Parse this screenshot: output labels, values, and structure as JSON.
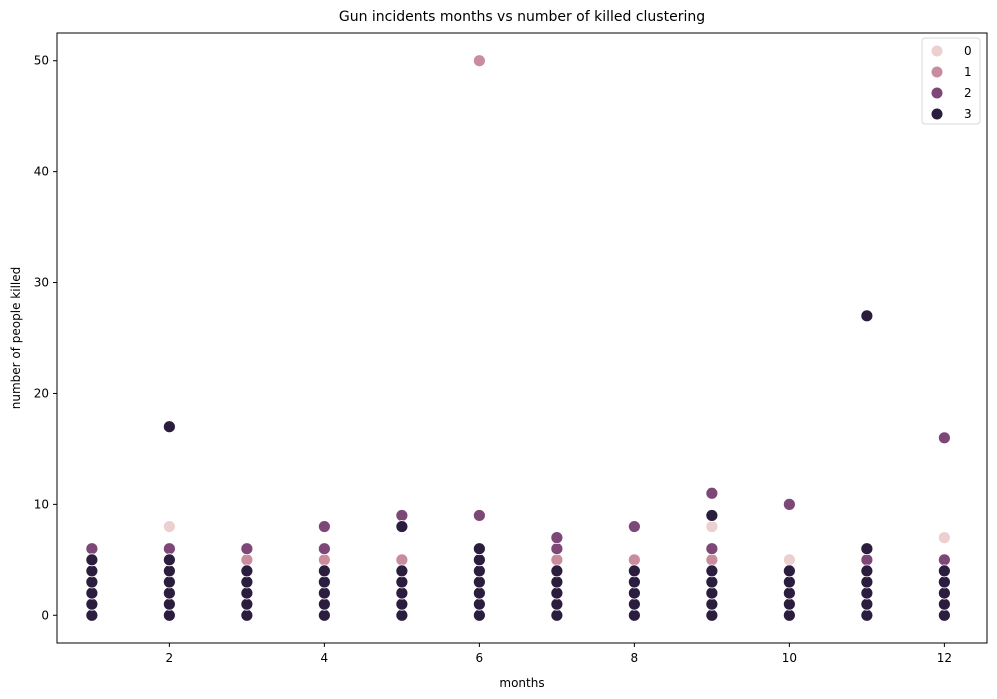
{
  "chart_data": {
    "type": "scatter",
    "title": "Gun incidents months vs number of killed clustering",
    "xlabel": "months",
    "ylabel": "number of people killed",
    "xlim": [
      0.55,
      12.55
    ],
    "ylim": [
      -2.5,
      52.5
    ],
    "x_ticks": [
      2,
      4,
      6,
      8,
      10,
      12
    ],
    "y_ticks": [
      0,
      10,
      20,
      30,
      40,
      50
    ],
    "grid": false,
    "legend_position": "top-right",
    "series": [
      {
        "name": "0",
        "color": "#ebd0cf",
        "points": [
          [
            2,
            8
          ],
          [
            9,
            8
          ],
          [
            10,
            5
          ],
          [
            12,
            7
          ]
        ]
      },
      {
        "name": "1",
        "color": "#c98c9e",
        "points": [
          [
            3,
            5
          ],
          [
            4,
            5
          ],
          [
            5,
            5
          ],
          [
            6,
            50
          ],
          [
            7,
            5
          ],
          [
            8,
            5
          ],
          [
            9,
            5
          ],
          [
            11,
            5
          ],
          [
            12,
            5
          ]
        ]
      },
      {
        "name": "2",
        "color": "#7d4778",
        "points": [
          [
            1,
            6
          ],
          [
            2,
            6
          ],
          [
            3,
            6
          ],
          [
            4,
            6
          ],
          [
            4,
            8
          ],
          [
            5,
            9
          ],
          [
            6,
            9
          ],
          [
            7,
            6
          ],
          [
            7,
            7
          ],
          [
            8,
            8
          ],
          [
            9,
            6
          ],
          [
            9,
            11
          ],
          [
            10,
            10
          ],
          [
            11,
            5
          ],
          [
            12,
            16
          ],
          [
            12,
            5
          ]
        ]
      },
      {
        "name": "3",
        "color": "#2b1d3d",
        "points": [
          [
            1,
            0
          ],
          [
            1,
            1
          ],
          [
            1,
            2
          ],
          [
            1,
            3
          ],
          [
            1,
            4
          ],
          [
            1,
            5
          ],
          [
            2,
            0
          ],
          [
            2,
            1
          ],
          [
            2,
            2
          ],
          [
            2,
            3
          ],
          [
            2,
            4
          ],
          [
            2,
            5
          ],
          [
            2,
            17
          ],
          [
            3,
            0
          ],
          [
            3,
            1
          ],
          [
            3,
            2
          ],
          [
            3,
            3
          ],
          [
            3,
            4
          ],
          [
            4,
            0
          ],
          [
            4,
            1
          ],
          [
            4,
            2
          ],
          [
            4,
            3
          ],
          [
            4,
            4
          ],
          [
            5,
            0
          ],
          [
            5,
            1
          ],
          [
            5,
            2
          ],
          [
            5,
            3
          ],
          [
            5,
            4
          ],
          [
            5,
            8
          ],
          [
            6,
            0
          ],
          [
            6,
            1
          ],
          [
            6,
            2
          ],
          [
            6,
            3
          ],
          [
            6,
            4
          ],
          [
            6,
            5
          ],
          [
            6,
            6
          ],
          [
            7,
            0
          ],
          [
            7,
            1
          ],
          [
            7,
            2
          ],
          [
            7,
            3
          ],
          [
            7,
            4
          ],
          [
            8,
            0
          ],
          [
            8,
            1
          ],
          [
            8,
            2
          ],
          [
            8,
            3
          ],
          [
            8,
            4
          ],
          [
            9,
            0
          ],
          [
            9,
            1
          ],
          [
            9,
            2
          ],
          [
            9,
            3
          ],
          [
            9,
            4
          ],
          [
            9,
            9
          ],
          [
            10,
            0
          ],
          [
            10,
            1
          ],
          [
            10,
            2
          ],
          [
            10,
            3
          ],
          [
            10,
            4
          ],
          [
            11,
            0
          ],
          [
            11,
            1
          ],
          [
            11,
            2
          ],
          [
            11,
            3
          ],
          [
            11,
            4
          ],
          [
            11,
            6
          ],
          [
            11,
            27
          ],
          [
            12,
            0
          ],
          [
            12,
            1
          ],
          [
            12,
            2
          ],
          [
            12,
            3
          ],
          [
            12,
            4
          ]
        ]
      }
    ]
  }
}
